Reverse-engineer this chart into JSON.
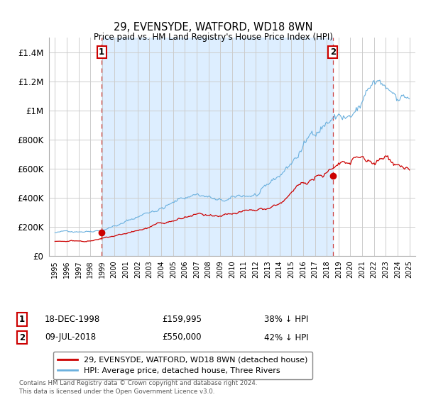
{
  "title": "29, EVENSYDE, WATFORD, WD18 8WN",
  "subtitle": "Price paid vs. HM Land Registry's House Price Index (HPI)",
  "ylim": [
    0,
    1500000
  ],
  "yticks": [
    0,
    200000,
    400000,
    600000,
    800000,
    1000000,
    1200000,
    1400000
  ],
  "background_color": "#ffffff",
  "grid_color": "#cccccc",
  "hpi_color": "#6ab0de",
  "price_color": "#cc0000",
  "shade_color": "#ddeeff",
  "purchase1_date": "18-DEC-1998",
  "purchase1_price": 159995,
  "purchase1_price_str": "£159,995",
  "purchase1_label": "38% ↓ HPI",
  "purchase2_date": "09-JUL-2018",
  "purchase2_price": 550000,
  "purchase2_price_str": "£550,000",
  "purchase2_label": "42% ↓ HPI",
  "legend_line1": "29, EVENSYDE, WATFORD, WD18 8WN (detached house)",
  "legend_line2": "HPI: Average price, detached house, Three Rivers",
  "footnote": "Contains HM Land Registry data © Crown copyright and database right 2024.\nThis data is licensed under the Open Government Licence v3.0.",
  "purchase1_x": 1998.96,
  "purchase2_x": 2018.52,
  "xlim_left": 1994.5,
  "xlim_right": 2025.5
}
